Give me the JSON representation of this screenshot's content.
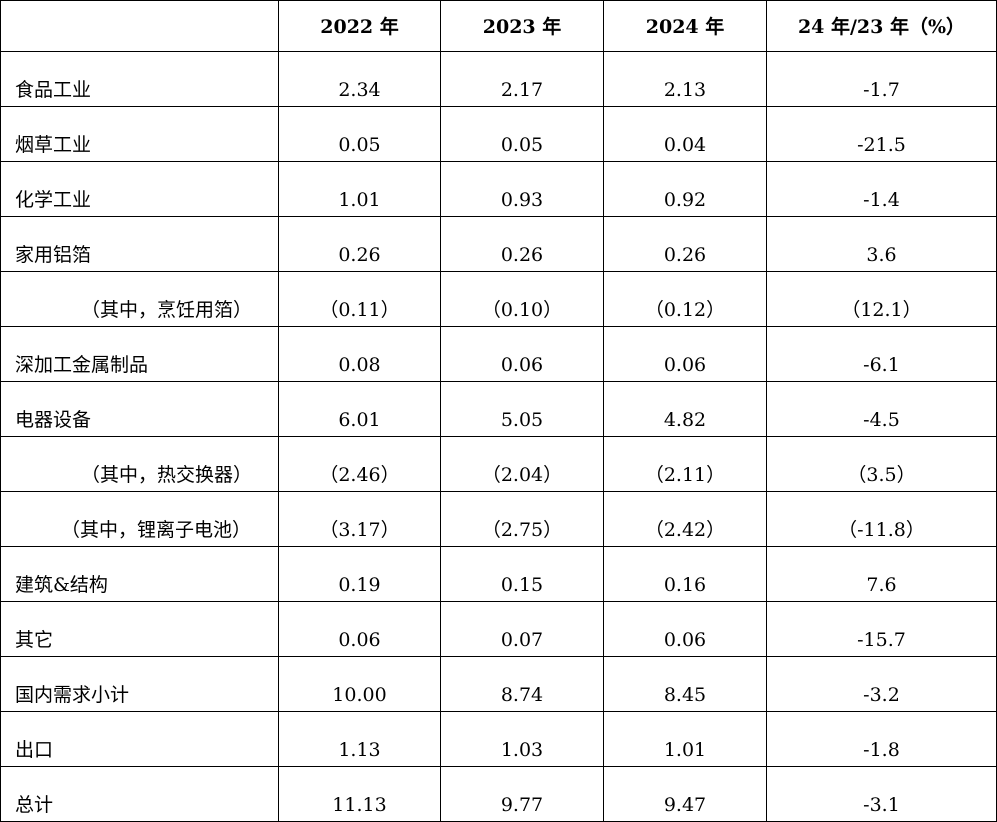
{
  "table": {
    "headers": [
      "",
      "2022 年",
      "2023 年",
      "2024 年",
      "24 年/23 年（%）"
    ],
    "rows": [
      {
        "label": "食品工业",
        "indent": 0,
        "values": [
          "2.34",
          "2.17",
          "2.13",
          "-1.7"
        ]
      },
      {
        "label": "烟草工业",
        "indent": 0,
        "values": [
          "0.05",
          "0.05",
          "0.04",
          "-21.5"
        ]
      },
      {
        "label": "化学工业",
        "indent": 0,
        "values": [
          "1.01",
          "0.93",
          "0.92",
          "-1.4"
        ]
      },
      {
        "label": "家用铝箔",
        "indent": 0,
        "values": [
          "0.26",
          "0.26",
          "0.26",
          "3.6"
        ]
      },
      {
        "label": "（其中，烹饪用箔）",
        "indent": 1,
        "values": [
          "（0.11）",
          "（0.10）",
          "（0.12）",
          "（12.1）"
        ]
      },
      {
        "label": "深加工金属制品",
        "indent": 0,
        "values": [
          "0.08",
          "0.06",
          "0.06",
          "-6.1"
        ]
      },
      {
        "label": "电器设备",
        "indent": 0,
        "values": [
          "6.01",
          "5.05",
          "4.82",
          "-4.5"
        ]
      },
      {
        "label": "（其中，热交换器）",
        "indent": 1,
        "values": [
          "（2.46）",
          "（2.04）",
          "（2.11）",
          "（3.5）"
        ]
      },
      {
        "label": "（其中，锂离子电池）",
        "indent": 2,
        "values": [
          "（3.17）",
          "（2.75）",
          "（2.42）",
          "（-11.8）"
        ]
      },
      {
        "label": "建筑&结构",
        "indent": 0,
        "values": [
          "0.19",
          "0.15",
          "0.16",
          "7.6"
        ]
      },
      {
        "label": "其它",
        "indent": 0,
        "values": [
          "0.06",
          "0.07",
          "0.06",
          "-15.7"
        ]
      },
      {
        "label": "国内需求小计",
        "indent": 0,
        "values": [
          "10.00",
          "8.74",
          "8.45",
          "-3.2"
        ]
      },
      {
        "label": "出口",
        "indent": 0,
        "values": [
          "1.13",
          "1.03",
          "1.01",
          "-1.8"
        ]
      },
      {
        "label": "总计",
        "indent": 0,
        "values": [
          "11.13",
          "9.77",
          "9.47",
          "-3.1"
        ]
      }
    ]
  }
}
